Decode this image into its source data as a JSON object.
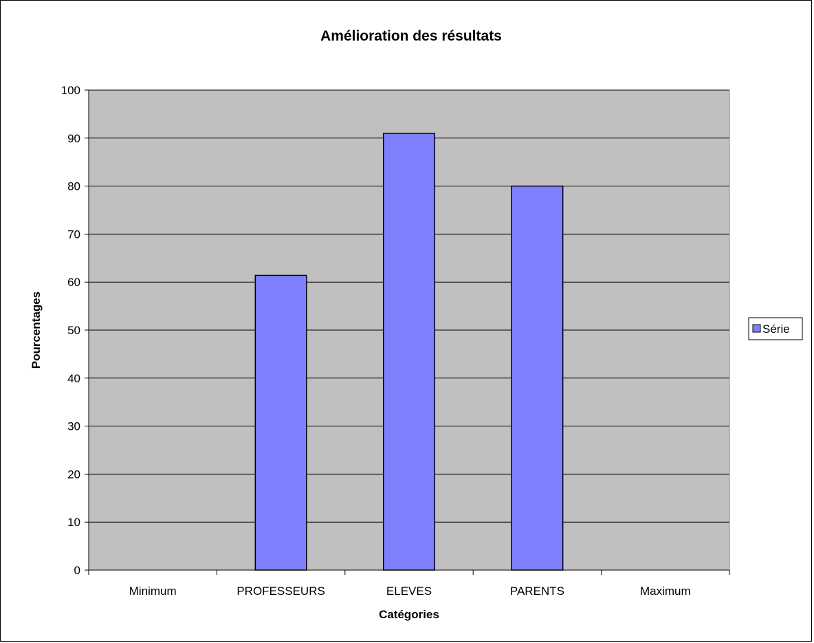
{
  "chart_data": {
    "type": "bar",
    "title": "Amélioration des résultats",
    "xlabel": "Catégories",
    "ylabel": "Pourcentages",
    "categories": [
      "Minimum",
      "PROFESSEURS",
      "ELEVES",
      "PARENTS",
      "Maximum"
    ],
    "series": [
      {
        "name": "Série",
        "values": [
          null,
          61.4,
          91,
          80,
          null
        ]
      }
    ],
    "ylim": [
      0,
      100
    ],
    "yticks": [
      "0",
      "10",
      "20",
      "30",
      "40",
      "50",
      "60",
      "70",
      "80",
      "90",
      "100"
    ],
    "grid": true,
    "legend": "right",
    "colors": {
      "plot_background": "#c0c0c0",
      "bar_fill": "#8080ff",
      "bar_stroke": "#000000",
      "gridline": "#000000"
    }
  }
}
